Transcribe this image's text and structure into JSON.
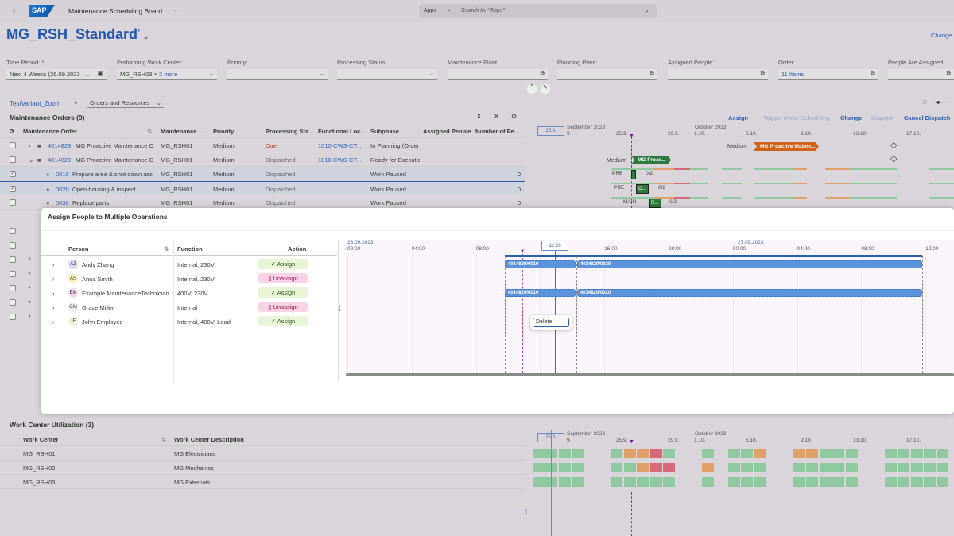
{
  "shell": {
    "app_title": "Maintenance Scheduling Board",
    "search_scope": "Apps",
    "search_placeholder": "Search In: \"Apps\"",
    "logo": "SAP"
  },
  "variant": {
    "title": "MG_RSH_Standard",
    "modified": "*",
    "change": "Change"
  },
  "filters": [
    {
      "label": "Time Period: *",
      "value": "Next 4 Weeks (26.09.2023 –..."
    },
    {
      "label": "Performing Work Center:",
      "value": "MG_RSH03 ×",
      "more": "2 more"
    },
    {
      "label": "Priority:",
      "value": ""
    },
    {
      "label": "Processing Status:",
      "value": ""
    },
    {
      "label": "Maintenance Plant:",
      "value": ""
    },
    {
      "label": "Planning Plant:",
      "value": ""
    },
    {
      "label": "Assigned People:",
      "value": ""
    },
    {
      "label": "Order:",
      "value": "11 Items"
    },
    {
      "label": "People Are Assigned:",
      "value": ""
    }
  ],
  "toolbar": {
    "view_variant": "TestVariant_Zoom",
    "view_mode": "Orders and Resources",
    "assign": "Assign",
    "trigger": "Trigger Order Scheduling",
    "change": "Change",
    "dispatch": "Dispatch",
    "cancel_dispatch": "Cancel Dispatch"
  },
  "orders": {
    "title": "Maintenance Orders (9)",
    "columns": [
      "Maintenance Order",
      "Maintenance ...",
      "Priority",
      "Processing Sta...",
      "Functional Loc...",
      "Subphase",
      "Assigned People",
      "Number of Pe..."
    ],
    "rows": [
      {
        "id": "4014828",
        "text": "MG Proactive Maintenance O",
        "wc": "MG_RSH01",
        "prio": "Medium",
        "status": "Due",
        "floc": "1010-CWS-CT...",
        "sub": "In Planning (Order",
        "num": ""
      },
      {
        "id": "4014829",
        "text": "MG Proactive Maintenance O",
        "wc": "MG_RSH01",
        "prio": "Medium",
        "status": "Dispatched",
        "floc": "1010-CWS-CT...",
        "sub": "Ready for Executic",
        "num": ""
      },
      {
        "id": "0010",
        "text": "Prepare area & shut down ass",
        "wc": "MG_RSH01",
        "prio": "Medium",
        "status": "Dispatched",
        "floc": "",
        "sub": "Work Paused",
        "num": "0"
      },
      {
        "id": "0020",
        "text": "Open housing & inspect",
        "wc": "MG_RSH01",
        "prio": "Medium",
        "status": "Dispatched",
        "floc": "",
        "sub": "Work Paused",
        "num": "0"
      },
      {
        "id": "0030",
        "text": "Replace parts",
        "wc": "MG_RSH01",
        "prio": "Medium",
        "status": "Dispatched",
        "floc": "",
        "sub": "Work Paused",
        "num": "0"
      }
    ]
  },
  "gantt": {
    "today_box": "25.9.",
    "month1": "September 2023",
    "month2": "October 2023",
    "dates": [
      "9.",
      "25.9.",
      "29.9.",
      "1.10.",
      "5.10.",
      "9.10.",
      "13.10.",
      "17.10."
    ],
    "bar1_prio": "Medium",
    "bar1": "MG Proactive Mainte...",
    "bar2_prio": "Medium",
    "bar2": "MG Proac...",
    "ops": [
      {
        "phase": "PRE",
        "label": "",
        "count": "0/2"
      },
      {
        "phase": "PRE",
        "label": "O...",
        "count": "0/2"
      },
      {
        "phase": "MAIN",
        "label": "R...",
        "count": "0/2"
      }
    ]
  },
  "dialog": {
    "title": "Assign People to Multiple Operations",
    "columns": [
      "Person",
      "Function",
      "Action"
    ],
    "people": [
      {
        "initials": "AZ",
        "name": "Andy Zhang",
        "function": "Internal, 230V",
        "action": "Assign",
        "color": "#e2d6f7"
      },
      {
        "initials": "AS",
        "name": "Anna Smith",
        "function": "Internal, 230V",
        "action": "Unassign",
        "color": "#fbf1b8"
      },
      {
        "initials": "EM",
        "name": "Example MaintenanceTechnician",
        "function": "400V, 230V",
        "action": "Assign",
        "color": "#f6d6f3"
      },
      {
        "initials": "GM",
        "name": "Grace Miller",
        "function": "Internal",
        "action": "Unassign",
        "color": "#eeeeee"
      },
      {
        "initials": "JE",
        "name": "John Employee",
        "function": "Internal, 400V, Lead",
        "action": "Assign",
        "color": "#eef6d9"
      }
    ],
    "timeline": {
      "day1": "26.09.2023",
      "day2": "27.09.2023",
      "ticks": [
        "00:00",
        "04:00",
        "08:00",
        "12:00",
        "16:00",
        "20:00",
        "00:00",
        "04:00",
        "08:00",
        "12:00"
      ],
      "cursor": "12:56",
      "cursor_hour": 12.93,
      "now_hour": 10.9
    },
    "bars": [
      {
        "row": 1,
        "label": "4014829/0010",
        "start": 9.8,
        "end": 14.2
      },
      {
        "row": 1,
        "label": "4014829/0020",
        "start": 14.3,
        "end": 35.8
      },
      {
        "row": 3,
        "label": "4014829/0010",
        "start": 9.8,
        "end": 14.2
      },
      {
        "row": 3,
        "label": "4014829/0020",
        "start": 14.3,
        "end": 35.8
      }
    ],
    "context_menu": "Delete"
  },
  "utilization": {
    "title": "Work Center Utilization (3)",
    "columns": [
      "Work Center",
      "Work Center Description"
    ],
    "rows": [
      {
        "wc": "MG_RSH01",
        "desc": "MG Electricians",
        "days": "gggg..goorg..g.ggo..ooggg..ggggg"
      },
      {
        "wc": "MG_RSH02",
        "desc": "MG Mechanics",
        "days": "gggg..ggorr..o.ggg..ggggg..ggggg"
      },
      {
        "wc": "MG_RSH03",
        "desc": "MG Externals",
        "days": "gggg..ggggg..g.ggg..ggggg..ggggg"
      }
    ],
    "status_colors": {
      "g": "#8fc9a0",
      "o": "#e0a06a",
      "r": "#d9677a"
    }
  }
}
